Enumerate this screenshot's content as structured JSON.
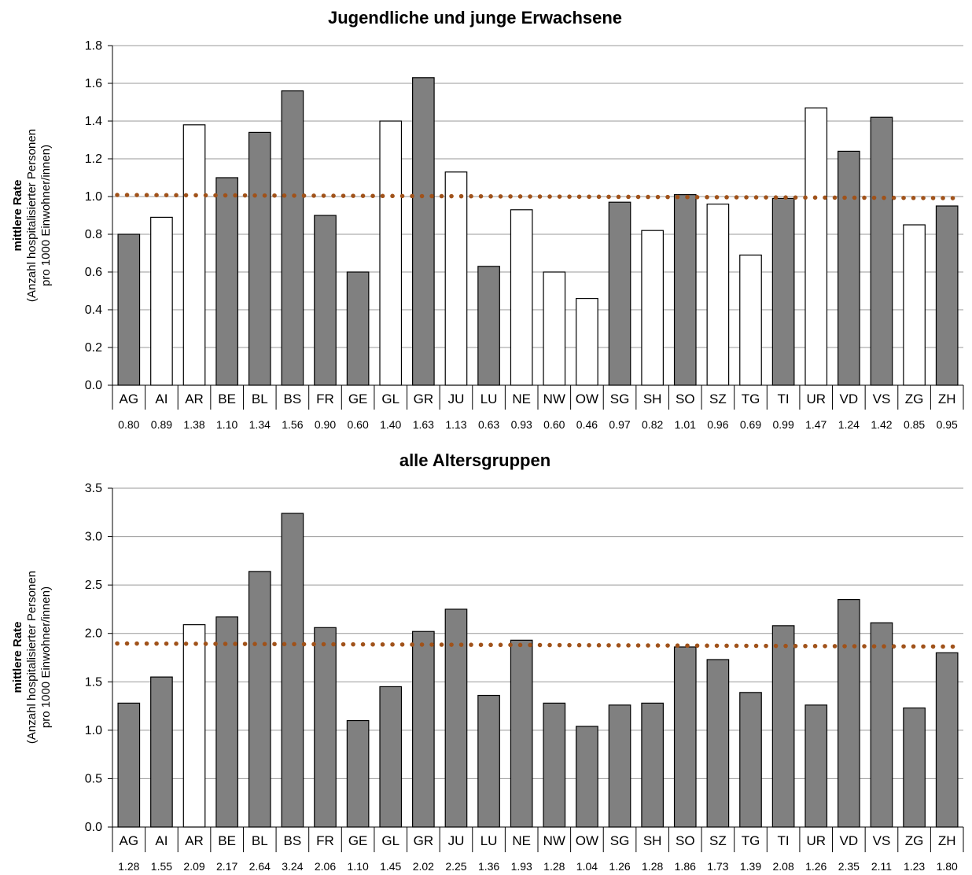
{
  "chart_data": [
    {
      "type": "bar",
      "title": "Jugendliche und junge Erwachsene",
      "ylabel": "mittlere Rate",
      "ylabel_sub1": "(Anzahl hospitalisierter Personen",
      "ylabel_sub2": "pro 1000 Einwohner/innen)",
      "ylim": [
        0,
        1.8
      ],
      "yticks": [
        "0.0",
        "0.2",
        "0.4",
        "0.6",
        "0.8",
        "1.0",
        "1.2",
        "1.4",
        "1.6",
        "1.8"
      ],
      "grid": true,
      "categories": [
        "AG",
        "AI",
        "AR",
        "BE",
        "BL",
        "BS",
        "FR",
        "GE",
        "GL",
        "GR",
        "JU",
        "LU",
        "NE",
        "NW",
        "OW",
        "SG",
        "SH",
        "SO",
        "SZ",
        "TG",
        "TI",
        "UR",
        "VD",
        "VS",
        "ZG",
        "ZH"
      ],
      "values": [
        0.8,
        0.89,
        1.38,
        1.1,
        1.34,
        1.56,
        0.9,
        0.6,
        1.4,
        1.63,
        1.13,
        0.63,
        0.93,
        0.6,
        0.46,
        0.97,
        0.82,
        1.01,
        0.96,
        0.69,
        0.99,
        1.47,
        1.24,
        1.42,
        0.85,
        0.95
      ],
      "value_labels": [
        "0.80",
        "0.89",
        "1.38",
        "1.10",
        "1.34",
        "1.56",
        "0.90",
        "0.60",
        "1.40",
        "1.63",
        "1.13",
        "0.63",
        "0.93",
        "0.60",
        "0.46",
        "0.97",
        "0.82",
        "1.01",
        "0.96",
        "0.69",
        "0.99",
        "1.47",
        "1.24",
        "1.42",
        "0.85",
        "0.95"
      ],
      "filled": [
        true,
        false,
        false,
        true,
        true,
        true,
        true,
        true,
        false,
        true,
        false,
        true,
        false,
        false,
        false,
        true,
        false,
        true,
        false,
        false,
        true,
        false,
        true,
        true,
        false,
        true
      ],
      "reference_line": 1.0,
      "colors": {
        "filled": "#808080",
        "empty": "#ffffff",
        "outline": "#000000",
        "reference": "#a0521a",
        "grid": "#999999"
      }
    },
    {
      "type": "bar",
      "title": "alle Altersgruppen",
      "ylabel": "mittlere Rate",
      "ylabel_sub1": "(Anzahl hospitalisierter Personen",
      "ylabel_sub2": "pro 1000 Einwohner/innen)",
      "ylim": [
        0,
        3.5
      ],
      "yticks": [
        "0.0",
        "0.5",
        "1.0",
        "1.5",
        "2.0",
        "2.5",
        "3.0",
        "3.5"
      ],
      "grid": true,
      "categories": [
        "AG",
        "AI",
        "AR",
        "BE",
        "BL",
        "BS",
        "FR",
        "GE",
        "GL",
        "GR",
        "JU",
        "LU",
        "NE",
        "NW",
        "OW",
        "SG",
        "SH",
        "SO",
        "SZ",
        "TG",
        "TI",
        "UR",
        "VD",
        "VS",
        "ZG",
        "ZH"
      ],
      "values": [
        1.28,
        1.55,
        2.09,
        2.17,
        2.64,
        3.24,
        2.06,
        1.1,
        1.45,
        2.02,
        2.25,
        1.36,
        1.93,
        1.28,
        1.04,
        1.26,
        1.28,
        1.86,
        1.73,
        1.39,
        2.08,
        1.26,
        2.35,
        2.11,
        1.23,
        1.8
      ],
      "value_labels": [
        "1.28",
        "1.55",
        "2.09",
        "2.17",
        "2.64",
        "3.24",
        "2.06",
        "1.10",
        "1.45",
        "2.02",
        "2.25",
        "1.36",
        "1.93",
        "1.28",
        "1.04",
        "1.26",
        "1.28",
        "1.86",
        "1.73",
        "1.39",
        "2.08",
        "1.26",
        "2.35",
        "2.11",
        "1.23",
        "1.80"
      ],
      "filled": [
        true,
        true,
        false,
        true,
        true,
        true,
        true,
        true,
        true,
        true,
        true,
        true,
        true,
        true,
        true,
        true,
        true,
        true,
        true,
        true,
        true,
        true,
        true,
        true,
        true,
        true
      ],
      "reference_line": 1.88,
      "colors": {
        "filled": "#808080",
        "empty": "#ffffff",
        "outline": "#000000",
        "reference": "#a0521a",
        "grid": "#999999"
      }
    }
  ]
}
